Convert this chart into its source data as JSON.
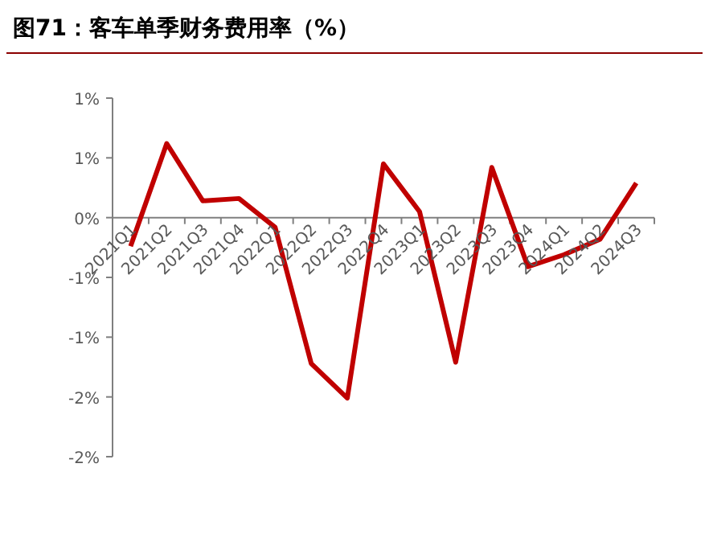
{
  "chart_data": {
    "type": "line",
    "title": "图71：客车单季财务费用率（%）",
    "categories": [
      "2021Q1",
      "2021Q2",
      "2021Q3",
      "2021Q4",
      "2022Q1",
      "2022Q2",
      "2022Q3",
      "2022Q4",
      "2023Q1",
      "2023Q2",
      "2023Q3",
      "2023Q4",
      "2024Q1",
      "2024Q2",
      "2024Q3"
    ],
    "series": [
      {
        "color": "#c00000",
        "values": [
          -0.24,
          0.62,
          0.14,
          0.16,
          -0.08,
          -1.22,
          -1.51,
          0.45,
          0.05,
          -1.21,
          0.42,
          -0.41,
          -0.31,
          -0.18,
          0.29
        ]
      }
    ],
    "ylim": [
      -2,
      1
    ],
    "yticks": [
      {
        "value": 1,
        "label": "1%"
      },
      {
        "value": 0.5,
        "label": "1%"
      },
      {
        "value": 0,
        "label": "0%"
      },
      {
        "value": -0.5,
        "label": "-1%"
      },
      {
        "value": -1,
        "label": "-1%"
      },
      {
        "value": -1.5,
        "label": "-2%"
      },
      {
        "value": -2,
        "label": "-2%"
      }
    ],
    "marker": "none",
    "line_style": "solid"
  }
}
